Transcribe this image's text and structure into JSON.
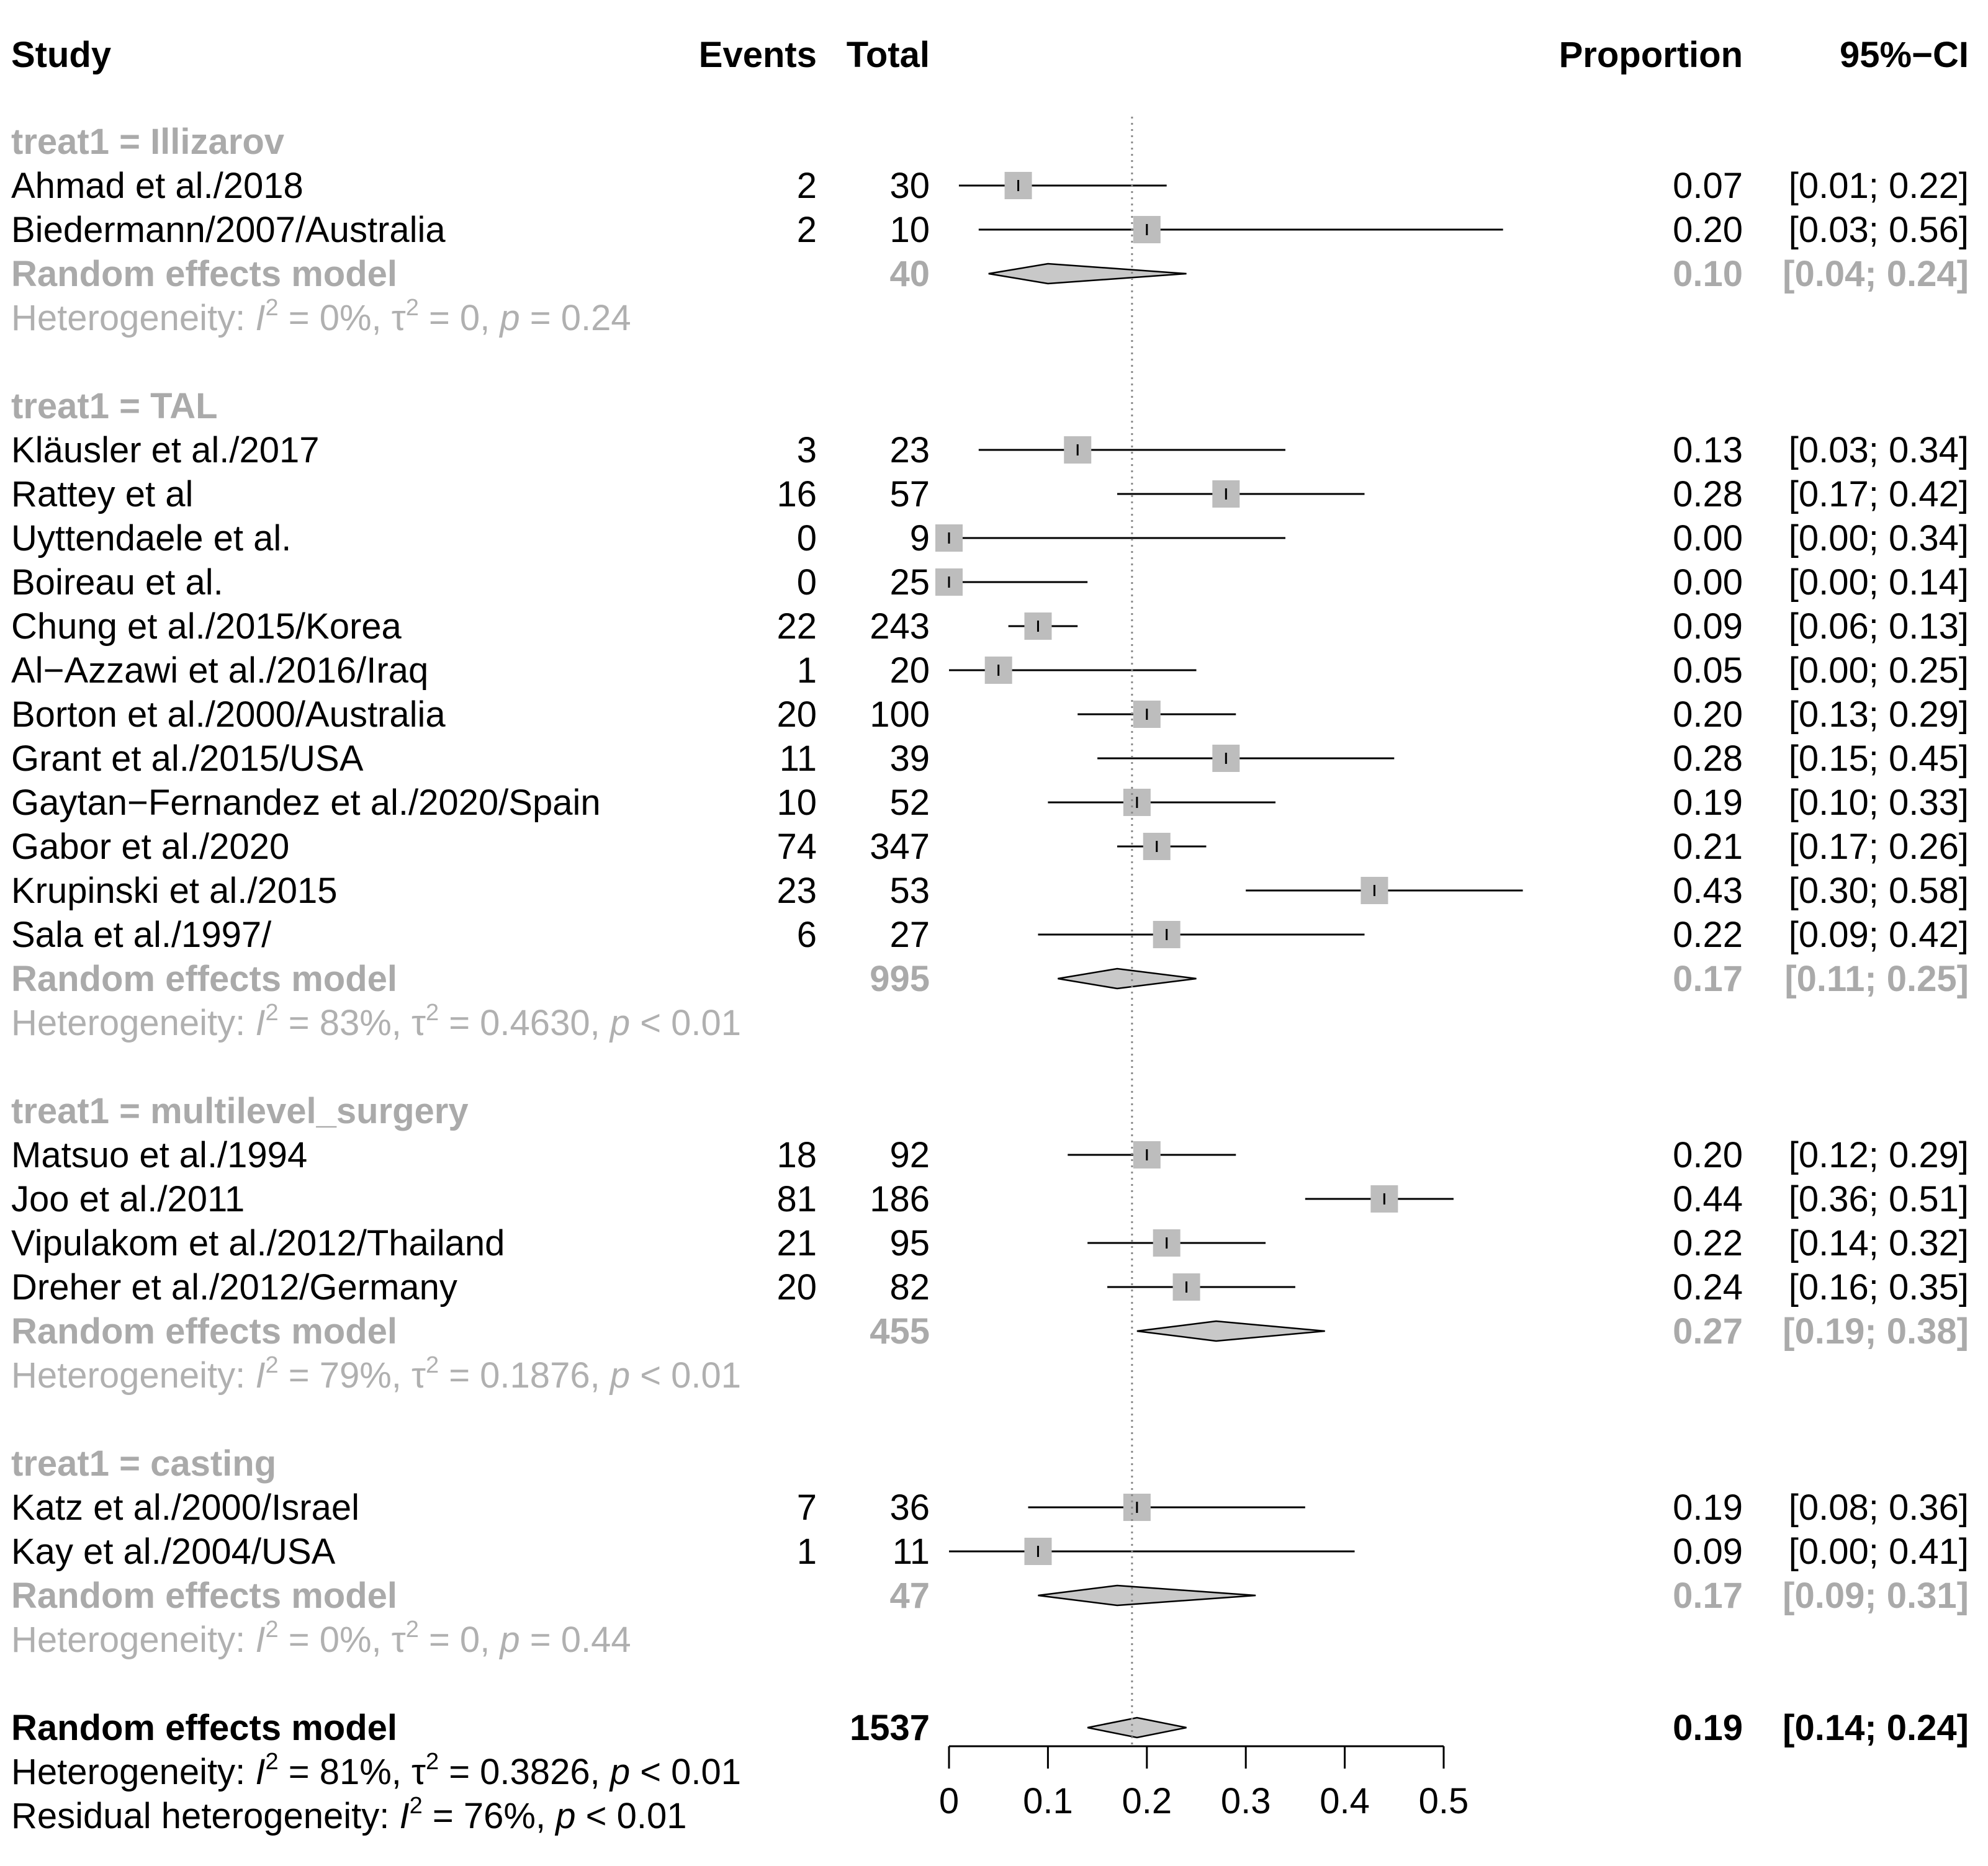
{
  "chart_data": {
    "type": "forest",
    "headers": {
      "study": "Study",
      "events": "Events",
      "total": "Total",
      "proportion": "Proportion",
      "ci": "95%−CI"
    },
    "groups": [
      {
        "label": "treat1 = Illizarov",
        "studies": [
          {
            "name": "Ahmad et al./2018",
            "events": "2",
            "total": "30",
            "prop": 0.07,
            "lo": 0.01,
            "hi": 0.22,
            "prop_text": "0.07",
            "ci_text": "[0.01; 0.22]",
            "weight": 1.0
          },
          {
            "name": "Biedermann/2007/Australia",
            "events": "2",
            "total": "10",
            "prop": 0.2,
            "lo": 0.03,
            "hi": 0.56,
            "prop_text": "0.20",
            "ci_text": "[0.03; 0.56]",
            "weight": 1.0
          }
        ],
        "model": {
          "label": "Random effects model",
          "total": "40",
          "prop": 0.1,
          "lo": 0.04,
          "hi": 0.24,
          "prop_text": "0.10",
          "ci_text": "[0.04; 0.24]"
        },
        "het": {
          "prefix": "Heterogeneity: ",
          "I2": "0%",
          "tau2": "0",
          "p_rel": "=",
          "p": "0.24"
        }
      },
      {
        "label": "treat1 = TAL",
        "studies": [
          {
            "name": "Kläusler et al./2017",
            "events": "3",
            "total": "23",
            "prop": 0.13,
            "lo": 0.03,
            "hi": 0.34,
            "prop_text": "0.13",
            "ci_text": "[0.03; 0.34]",
            "weight": 1.0
          },
          {
            "name": "Rattey et al",
            "events": "16",
            "total": "57",
            "prop": 0.28,
            "lo": 0.17,
            "hi": 0.42,
            "prop_text": "0.28",
            "ci_text": "[0.17; 0.42]",
            "weight": 1.0
          },
          {
            "name": "Uyttendaele et al.",
            "events": "0",
            "total": "9",
            "prop": 0.0,
            "lo": 0.0,
            "hi": 0.34,
            "prop_text": "0.00",
            "ci_text": "[0.00; 0.34]",
            "weight": 1.0
          },
          {
            "name": "Boireau et al.",
            "events": "0",
            "total": "25",
            "prop": 0.0,
            "lo": 0.0,
            "hi": 0.14,
            "prop_text": "0.00",
            "ci_text": "[0.00; 0.14]",
            "weight": 1.0
          },
          {
            "name": "Chung et al./2015/Korea",
            "events": "22",
            "total": "243",
            "prop": 0.09,
            "lo": 0.06,
            "hi": 0.13,
            "prop_text": "0.09",
            "ci_text": "[0.06; 0.13]",
            "weight": 1.0
          },
          {
            "name": "Al−Azzawi et al./2016/Iraq",
            "events": "1",
            "total": "20",
            "prop": 0.05,
            "lo": 0.0,
            "hi": 0.25,
            "prop_text": "0.05",
            "ci_text": "[0.00; 0.25]",
            "weight": 1.0
          },
          {
            "name": "Borton et al./2000/Australia",
            "events": "20",
            "total": "100",
            "prop": 0.2,
            "lo": 0.13,
            "hi": 0.29,
            "prop_text": "0.20",
            "ci_text": "[0.13; 0.29]",
            "weight": 1.0
          },
          {
            "name": "Grant et al./2015/USA",
            "events": "11",
            "total": "39",
            "prop": 0.28,
            "lo": 0.15,
            "hi": 0.45,
            "prop_text": "0.28",
            "ci_text": "[0.15; 0.45]",
            "weight": 1.0
          },
          {
            "name": "Gaytan−Fernandez et al./2020/Spain",
            "events": "10",
            "total": "52",
            "prop": 0.19,
            "lo": 0.1,
            "hi": 0.33,
            "prop_text": "0.19",
            "ci_text": "[0.10; 0.33]",
            "weight": 1.0
          },
          {
            "name": "Gabor et al./2020",
            "events": "74",
            "total": "347",
            "prop": 0.21,
            "lo": 0.17,
            "hi": 0.26,
            "prop_text": "0.21",
            "ci_text": "[0.17; 0.26]",
            "weight": 1.0
          },
          {
            "name": "Krupinski et al./2015",
            "events": "23",
            "total": "53",
            "prop": 0.43,
            "lo": 0.3,
            "hi": 0.58,
            "prop_text": "0.43",
            "ci_text": "[0.30; 0.58]",
            "weight": 1.0
          },
          {
            "name": "Sala et al./1997/",
            "events": "6",
            "total": "27",
            "prop": 0.22,
            "lo": 0.09,
            "hi": 0.42,
            "prop_text": "0.22",
            "ci_text": "[0.09; 0.42]",
            "weight": 1.0
          }
        ],
        "model": {
          "label": "Random effects model",
          "total": "995",
          "prop": 0.17,
          "lo": 0.11,
          "hi": 0.25,
          "prop_text": "0.17",
          "ci_text": "[0.11; 0.25]"
        },
        "het": {
          "prefix": "Heterogeneity: ",
          "I2": "83%",
          "tau2": "0.4630",
          "p_rel": "<",
          "p": "0.01"
        }
      },
      {
        "label": "treat1 = multilevel_surgery",
        "studies": [
          {
            "name": "Matsuo et al./1994",
            "events": "18",
            "total": "92",
            "prop": 0.2,
            "lo": 0.12,
            "hi": 0.29,
            "prop_text": "0.20",
            "ci_text": "[0.12; 0.29]",
            "weight": 1.0
          },
          {
            "name": "Joo et al./2011",
            "events": "81",
            "total": "186",
            "prop": 0.44,
            "lo": 0.36,
            "hi": 0.51,
            "prop_text": "0.44",
            "ci_text": "[0.36; 0.51]",
            "weight": 1.0
          },
          {
            "name": "Vipulakom et al./2012/Thailand",
            "events": "21",
            "total": "95",
            "prop": 0.22,
            "lo": 0.14,
            "hi": 0.32,
            "prop_text": "0.22",
            "ci_text": "[0.14; 0.32]",
            "weight": 1.0
          },
          {
            "name": "Dreher et al./2012/Germany",
            "events": "20",
            "total": "82",
            "prop": 0.24,
            "lo": 0.16,
            "hi": 0.35,
            "prop_text": "0.24",
            "ci_text": "[0.16; 0.35]",
            "weight": 1.0
          }
        ],
        "model": {
          "label": "Random effects model",
          "total": "455",
          "prop": 0.27,
          "lo": 0.19,
          "hi": 0.38,
          "prop_text": "0.27",
          "ci_text": "[0.19; 0.38]"
        },
        "het": {
          "prefix": "Heterogeneity: ",
          "I2": "79%",
          "tau2": "0.1876",
          "p_rel": "<",
          "p": "0.01"
        }
      },
      {
        "label": "treat1 = casting",
        "studies": [
          {
            "name": "Katz et al./2000/Israel",
            "events": "7",
            "total": "36",
            "prop": 0.19,
            "lo": 0.08,
            "hi": 0.36,
            "prop_text": "0.19",
            "ci_text": "[0.08; 0.36]",
            "weight": 1.0
          },
          {
            "name": "Kay et al./2004/USA",
            "events": "1",
            "total": "11",
            "prop": 0.09,
            "lo": 0.0,
            "hi": 0.41,
            "prop_text": "0.09",
            "ci_text": "[0.00; 0.41]",
            "weight": 1.0
          }
        ],
        "model": {
          "label": "Random effects model",
          "total": "47",
          "prop": 0.17,
          "lo": 0.09,
          "hi": 0.31,
          "prop_text": "0.17",
          "ci_text": "[0.09; 0.31]"
        },
        "het": {
          "prefix": "Heterogeneity: ",
          "I2": "0%",
          "tau2": "0",
          "p_rel": "=",
          "p": "0.44"
        }
      }
    ],
    "overall": {
      "label": "Random effects model",
      "total": "1537",
      "prop": 0.19,
      "lo": 0.14,
      "hi": 0.24,
      "prop_text": "0.19",
      "ci_text": "[0.14; 0.24]",
      "het": {
        "prefix": "Heterogeneity: ",
        "I2": "81%",
        "tau2": "0.3826",
        "p_rel": "<",
        "p": "0.01"
      },
      "residual": {
        "prefix": "Residual heterogeneity: ",
        "I2": "76%",
        "p_rel": "<",
        "p": "0.01"
      }
    },
    "reference_line": 0.185,
    "x_axis": {
      "range": [
        0,
        0.5
      ],
      "ticks": [
        0,
        0.1,
        0.2,
        0.3,
        0.4,
        0.5
      ],
      "tick_labels": [
        "0",
        "0.1",
        "0.2",
        "0.3",
        "0.4",
        "0.5"
      ]
    }
  }
}
